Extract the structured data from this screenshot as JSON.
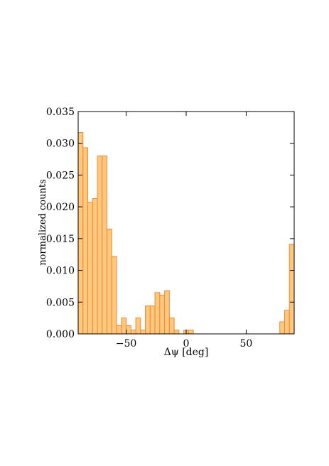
{
  "chart_data": {
    "type": "histogram",
    "xlabel": "Δψ [deg]",
    "ylabel": "normalized counts",
    "bins": [
      -90,
      -86,
      -82,
      -78,
      -74,
      -70,
      -66,
      -62,
      -58,
      -54,
      -50,
      -46,
      -42,
      -38,
      -34,
      -30,
      -26,
      -22,
      -18,
      -14,
      -10,
      -6,
      -2,
      2,
      6,
      10,
      14,
      18,
      22,
      26,
      30,
      34,
      38,
      42,
      46,
      50,
      54,
      58,
      62,
      66,
      70,
      74,
      78,
      82,
      86,
      90
    ],
    "values": [
      0.0317,
      0.0293,
      0.0207,
      0.0213,
      0.028,
      0.028,
      0.0165,
      0.0122,
      0.0013,
      0.0025,
      0.0013,
      0.0006,
      0.0025,
      0.0006,
      0.0044,
      0.0044,
      0.0065,
      0.0061,
      0.0068,
      0.0025,
      0.0006,
      0,
      0.0006,
      0.0006,
      0,
      0,
      0,
      0,
      0,
      0,
      0,
      0,
      0,
      0,
      0,
      0,
      0,
      0,
      0,
      0,
      0,
      0,
      0.0019,
      0.0037,
      0.0141
    ],
    "color": "#ffc87c",
    "edgecolor": "#f0883a",
    "xlim": [
      -90,
      90
    ],
    "ylim": [
      0,
      0.035
    ],
    "xticks": [
      {
        "value": -50,
        "label": "−50"
      },
      0,
      50
    ],
    "yticks": [
      {
        "value": 0,
        "label": "0.000"
      },
      {
        "value": 0.005,
        "label": "0.005"
      },
      {
        "value": 0.01,
        "label": "0.010"
      },
      {
        "value": 0.015,
        "label": "0.015"
      },
      {
        "value": 0.02,
        "label": "0.020"
      },
      {
        "value": 0.025,
        "label": "0.025"
      },
      {
        "value": 0.03,
        "label": "0.030"
      },
      {
        "value": 0.035,
        "label": "0.035"
      }
    ]
  }
}
